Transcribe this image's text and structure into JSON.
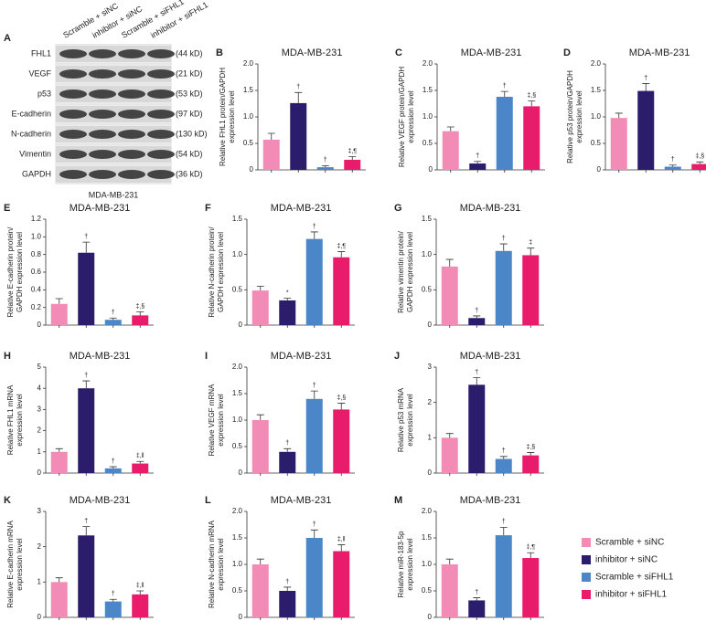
{
  "blot": {
    "letter": "A",
    "lanes": [
      "Scramble + siNC",
      "inhibitor + siNC",
      "Scramble + siFHL1",
      "inhibitor + siFHL1"
    ],
    "rows": [
      {
        "protein": "FHL1",
        "size": "(44 kD)"
      },
      {
        "protein": "VEGF",
        "size": "(21 kD)"
      },
      {
        "protein": "p53",
        "size": "(53 kD)"
      },
      {
        "protein": "E-cadherin",
        "size": "(97 kD)"
      },
      {
        "protein": "N-cadherin",
        "size": "(130 kD)"
      },
      {
        "protein": "Vimentin",
        "size": "(54 kD)"
      },
      {
        "protein": "GAPDH",
        "size": "(36 kD)"
      }
    ],
    "caption": "MDA-MB-231"
  },
  "legend": [
    {
      "name": "Scramble + siNC",
      "color": "#f28cb6"
    },
    {
      "name": "inhibitor + siNC",
      "color": "#2b1d6b"
    },
    {
      "name": "Scramble + siFHL1",
      "color": "#4a86c8"
    },
    {
      "name": "inhibitor + siFHL1",
      "color": "#e81c6a"
    }
  ],
  "chart_data": [
    {
      "type": "bar",
      "letter": "B",
      "title": "MDA-MB-231",
      "ylabel": [
        "Relative FHL1 protein/GAPDH",
        "expression level"
      ],
      "values": [
        0.57,
        1.26,
        0.05,
        0.19
      ],
      "errors": [
        0.12,
        0.2,
        0.03,
        0.06
      ],
      "annotations": [
        null,
        "†",
        "†",
        "‡,¶"
      ],
      "ylim": [
        0,
        2
      ],
      "yticks": [
        0,
        0.5,
        {
          "value": 1,
          "label": "1.0"
        },
        1.5,
        {
          "value": 2,
          "label": "2.0"
        }
      ]
    },
    {
      "type": "bar",
      "letter": "C",
      "title": "MDA-MB-231",
      "ylabel": [
        "Relative VEGF protein/GAPDH",
        "expression level"
      ],
      "values": [
        0.73,
        0.12,
        1.38,
        1.2
      ],
      "errors": [
        0.08,
        0.04,
        0.1,
        0.1
      ],
      "annotations": [
        null,
        "†",
        "†",
        "‡,§"
      ],
      "ylim": [
        0,
        2
      ],
      "yticks": [
        0,
        0.5,
        {
          "value": 1,
          "label": "1.0"
        },
        1.5,
        {
          "value": 2,
          "label": "2.0"
        }
      ]
    },
    {
      "type": "bar",
      "letter": "D",
      "title": "MDA-MB-231",
      "ylabel": [
        "Relative p53 protein/GAPDH",
        "expression level"
      ],
      "values": [
        0.98,
        1.49,
        0.06,
        0.11
      ],
      "errors": [
        0.09,
        0.14,
        0.03,
        0.04
      ],
      "annotations": [
        null,
        "†",
        "†",
        "‡,§"
      ],
      "ylim": [
        0,
        2
      ],
      "yticks": [
        0,
        0.5,
        {
          "value": 1,
          "label": "1.0"
        },
        1.5,
        {
          "value": 2,
          "label": "2.0"
        }
      ]
    },
    {
      "type": "bar",
      "letter": "E",
      "title": "MDA-MB-231",
      "ylabel": [
        "Relative E-cadherin protein/",
        "GAPDH expression level"
      ],
      "values": [
        0.24,
        0.82,
        0.06,
        0.11
      ],
      "errors": [
        0.06,
        0.12,
        0.02,
        0.04
      ],
      "annotations": [
        null,
        "†",
        "†",
        "‡,§"
      ],
      "ylim": [
        0,
        1.2
      ],
      "yticks": [
        0,
        0.2,
        0.4,
        0.6,
        0.8,
        {
          "value": 1,
          "label": "1.0"
        },
        1.2
      ]
    },
    {
      "type": "bar",
      "letter": "F",
      "title": "MDA-MB-231",
      "ylabel": [
        "Relative N-cadherin protein/",
        "GAPDH expression level"
      ],
      "values": [
        0.49,
        0.35,
        1.22,
        0.96
      ],
      "errors": [
        0.06,
        0.03,
        0.1,
        0.08
      ],
      "annotations": [
        null,
        "*",
        "†",
        "‡,¶"
      ],
      "ylim": [
        0,
        1.5
      ],
      "yticks": [
        0,
        0.5,
        {
          "value": 1,
          "label": "1.0"
        },
        1.5
      ]
    },
    {
      "type": "bar",
      "letter": "G",
      "title": "MDA-MB-231",
      "ylabel": [
        "Relative vimentin protein/",
        "GAPDH expression level"
      ],
      "values": [
        0.83,
        0.1,
        1.05,
        0.99
      ],
      "errors": [
        0.1,
        0.03,
        0.1,
        0.1
      ],
      "annotations": [
        null,
        "†",
        "†",
        "‡"
      ],
      "ylim": [
        0,
        1.5
      ],
      "yticks": [
        0,
        0.5,
        {
          "value": 1,
          "label": "1.0"
        },
        1.5
      ]
    },
    {
      "type": "bar",
      "letter": "H",
      "title": "MDA-MB-231",
      "ylabel": [
        "Relative FHL1 mRNA",
        "expression level"
      ],
      "values": [
        1.0,
        4.0,
        0.22,
        0.45
      ],
      "errors": [
        0.15,
        0.35,
        0.08,
        0.1
      ],
      "annotations": [
        null,
        "†",
        "†",
        "‡,‖"
      ],
      "ylim": [
        0,
        5
      ],
      "yticks": [
        0,
        1,
        2,
        3,
        4,
        5
      ]
    },
    {
      "type": "bar",
      "letter": "I",
      "title": "MDA-MB-231",
      "ylabel": [
        "Relative VEGF mRNA",
        "expression level"
      ],
      "values": [
        1.0,
        0.4,
        1.4,
        1.2
      ],
      "errors": [
        0.1,
        0.06,
        0.15,
        0.12
      ],
      "annotations": [
        null,
        "†",
        "†",
        "‡,§"
      ],
      "ylim": [
        0,
        2
      ],
      "yticks": [
        0,
        0.5,
        {
          "value": 1,
          "label": "1.0"
        },
        1.5,
        {
          "value": 2,
          "label": "2.0"
        }
      ]
    },
    {
      "type": "bar",
      "letter": "J",
      "title": "MDA-MB-231",
      "ylabel": [
        "Relative p53 mRNA",
        "expression level"
      ],
      "values": [
        1.0,
        2.5,
        0.4,
        0.5
      ],
      "errors": [
        0.12,
        0.2,
        0.07,
        0.08
      ],
      "annotations": [
        null,
        "†",
        "†",
        "‡,§"
      ],
      "ylim": [
        0,
        3
      ],
      "yticks": [
        0,
        1,
        2,
        3
      ]
    },
    {
      "type": "bar",
      "letter": "K",
      "title": "MDA-MB-231",
      "ylabel": [
        "Relative E-cadherin mRNA",
        "expression level"
      ],
      "values": [
        1.0,
        2.32,
        0.45,
        0.65
      ],
      "errors": [
        0.12,
        0.25,
        0.06,
        0.1
      ],
      "annotations": [
        null,
        "†",
        "†",
        "‡,‖"
      ],
      "ylim": [
        0,
        3
      ],
      "yticks": [
        0,
        1,
        2,
        3
      ]
    },
    {
      "type": "bar",
      "letter": "L",
      "title": "MDA-MB-231",
      "ylabel": [
        "Relative N-cadherin mRNA",
        "expression level"
      ],
      "values": [
        1.0,
        0.5,
        1.5,
        1.25
      ],
      "errors": [
        0.1,
        0.07,
        0.15,
        0.12
      ],
      "annotations": [
        null,
        "†",
        "†",
        "‡,‖"
      ],
      "ylim": [
        0,
        2
      ],
      "yticks": [
        0,
        0.5,
        {
          "value": 1,
          "label": "1.0"
        },
        1.5,
        {
          "value": 2,
          "label": "2.0"
        }
      ]
    },
    {
      "type": "bar",
      "letter": "M",
      "title": "MDA-MB-231",
      "ylabel": [
        "Relative miR-183-5p",
        "expression level"
      ],
      "values": [
        1.0,
        0.32,
        1.55,
        1.12
      ],
      "errors": [
        0.1,
        0.05,
        0.15,
        0.1
      ],
      "annotations": [
        null,
        "†",
        "†",
        "‡,¶"
      ],
      "ylim": [
        0,
        2
      ],
      "yticks": [
        0,
        0.5,
        {
          "value": 1,
          "label": "1.0"
        },
        1.5,
        {
          "value": 2,
          "label": "2.0"
        }
      ]
    }
  ]
}
